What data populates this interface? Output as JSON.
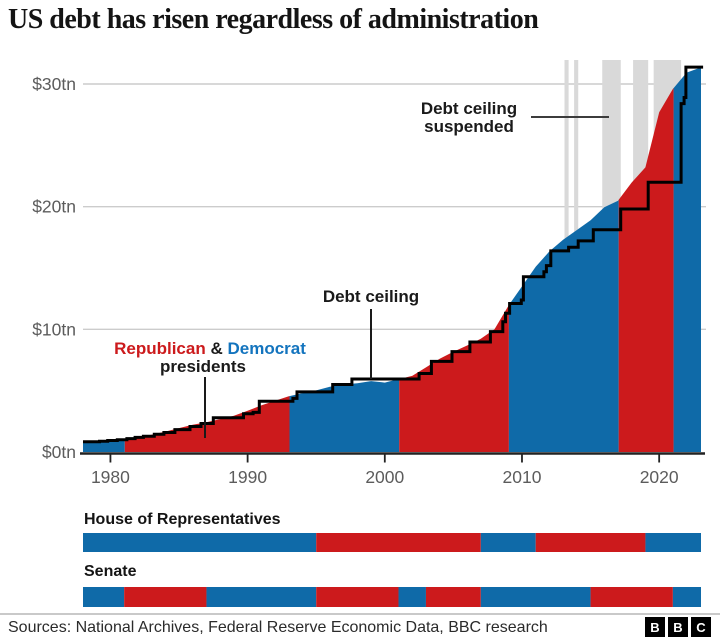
{
  "title": "US debt has risen regardless of administration",
  "annotations": {
    "suspended": {
      "line1": "Debt ceiling",
      "line2": "suspended"
    },
    "ceiling": {
      "label": "Debt ceiling"
    },
    "presidents": {
      "republican": "Republican",
      "amp": "&",
      "democrat": "Democrat",
      "line2": "presidents"
    }
  },
  "strips": {
    "house": {
      "label": "House of Representatives"
    },
    "senate": {
      "label": "Senate"
    }
  },
  "source": {
    "label": "Sources: National Archives, Federal Reserve Economic Data, BBC research",
    "logo": [
      "B",
      "B",
      "C"
    ]
  },
  "chart_data": {
    "type": "area",
    "title": "US debt has risen regardless of administration",
    "unit": "trillions of US dollars",
    "x_domain": [
      1978,
      2023.05
    ],
    "y_domain": [
      0,
      31.5
    ],
    "grid": true,
    "y_ticks": [
      {
        "value": 0,
        "label": "$0tn"
      },
      {
        "value": 10,
        "label": "$10tn"
      },
      {
        "value": 20,
        "label": "$20tn"
      },
      {
        "value": 30,
        "label": "$30tn"
      }
    ],
    "x_ticks": [
      {
        "value": 1980,
        "label": "1980"
      },
      {
        "value": 1990,
        "label": "1990"
      },
      {
        "value": 2000,
        "label": "2000"
      },
      {
        "value": 2010,
        "label": "2010"
      },
      {
        "value": 2020,
        "label": "2020"
      }
    ],
    "colors": {
      "republican": "#CC1A1C",
      "democrat": "#0F6AA8",
      "ceiling_line": "#000000",
      "suspension_band": "#D9D9D9",
      "gridline": "#CCCCCC",
      "axis": "#222222",
      "tick_text": "#5C5C5C"
    },
    "president_segments": [
      {
        "party": "democrat",
        "start": 1978,
        "end": 1981.05
      },
      {
        "party": "republican",
        "start": 1981.05,
        "end": 1993.05
      },
      {
        "party": "democrat",
        "start": 1993.05,
        "end": 2001.05
      },
      {
        "party": "republican",
        "start": 2001.05,
        "end": 2009.05
      },
      {
        "party": "democrat",
        "start": 2009.05,
        "end": 2017.05
      },
      {
        "party": "republican",
        "start": 2017.05,
        "end": 2021.05
      },
      {
        "party": "democrat",
        "start": 2021.05,
        "end": 2023.05
      }
    ],
    "debt_series_tn": [
      [
        1978,
        0.79
      ],
      [
        1979,
        0.85
      ],
      [
        1980,
        0.93
      ],
      [
        1981,
        1.03
      ],
      [
        1982,
        1.2
      ],
      [
        1983,
        1.41
      ],
      [
        1984,
        1.66
      ],
      [
        1985,
        1.95
      ],
      [
        1986,
        2.22
      ],
      [
        1987,
        2.43
      ],
      [
        1988,
        2.68
      ],
      [
        1989,
        2.95
      ],
      [
        1990,
        3.36
      ],
      [
        1991,
        3.8
      ],
      [
        1992,
        4.18
      ],
      [
        1993,
        4.54
      ],
      [
        1994,
        4.8
      ],
      [
        1995,
        5.02
      ],
      [
        1996,
        5.32
      ],
      [
        1997,
        5.5
      ],
      [
        1998,
        5.61
      ],
      [
        1999,
        5.78
      ],
      [
        2000,
        5.66
      ],
      [
        2001,
        5.94
      ],
      [
        2002,
        6.2
      ],
      [
        2003,
        6.9
      ],
      [
        2004,
        7.6
      ],
      [
        2005,
        8.17
      ],
      [
        2006,
        8.68
      ],
      [
        2007,
        9.23
      ],
      [
        2008,
        10.0
      ],
      [
        2009,
        11.9
      ],
      [
        2010,
        13.5
      ],
      [
        2011,
        15.1
      ],
      [
        2012,
        16.35
      ],
      [
        2013,
        17.3
      ],
      [
        2014,
        18.1
      ],
      [
        2015,
        18.9
      ],
      [
        2016,
        19.95
      ],
      [
        2017,
        20.49
      ],
      [
        2018,
        21.97
      ],
      [
        2019,
        23.2
      ],
      [
        2020,
        27.7
      ],
      [
        2021,
        29.6
      ],
      [
        2022,
        30.93
      ],
      [
        2023.05,
        31.35
      ]
    ],
    "debt_ceiling_steps_tn": [
      [
        1978,
        0.83
      ],
      [
        1979.2,
        0.88
      ],
      [
        1979.8,
        0.94
      ],
      [
        1980.5,
        1.0
      ],
      [
        1981.2,
        1.09
      ],
      [
        1981.8,
        1.19
      ],
      [
        1982.4,
        1.29
      ],
      [
        1983.2,
        1.45
      ],
      [
        1983.9,
        1.59
      ],
      [
        1984.7,
        1.824
      ],
      [
        1985.8,
        2.079
      ],
      [
        1986.6,
        2.32
      ],
      [
        1987.5,
        2.8
      ],
      [
        1989.7,
        3.12
      ],
      [
        1990.4,
        3.23
      ],
      [
        1990.85,
        4.145
      ],
      [
        1993.3,
        4.37
      ],
      [
        1993.6,
        4.9
      ],
      [
        1996.2,
        5.5
      ],
      [
        1997.6,
        5.95
      ],
      [
        2002.5,
        6.4
      ],
      [
        2003.4,
        7.384
      ],
      [
        2004.9,
        8.184
      ],
      [
        2006.2,
        8.965
      ],
      [
        2007.7,
        9.815
      ],
      [
        2008.6,
        10.615
      ],
      [
        2008.8,
        11.315
      ],
      [
        2009.1,
        12.104
      ],
      [
        2009.95,
        12.394
      ],
      [
        2010.1,
        14.294
      ],
      [
        2011.6,
        14.694
      ],
      [
        2011.78,
        15.194
      ],
      [
        2012.1,
        16.394
      ],
      [
        2013.4,
        16.699
      ],
      [
        2014.1,
        17.212
      ],
      [
        2015.2,
        18.113
      ],
      [
        2017.2,
        19.809
      ],
      [
        2019.2,
        21.988
      ],
      [
        2021.6,
        28.401
      ],
      [
        2021.82,
        28.901
      ],
      [
        2021.95,
        31.381
      ],
      [
        2023.2,
        31.381
      ]
    ],
    "ceiling_suspensions": [
      {
        "start": 2013.1,
        "end": 2013.4
      },
      {
        "start": 2013.8,
        "end": 2014.1
      },
      {
        "start": 2015.85,
        "end": 2017.2
      },
      {
        "start": 2018.1,
        "end": 2019.2
      },
      {
        "start": 2019.6,
        "end": 2021.6
      }
    ],
    "congress_control": {
      "house": [
        {
          "party": "democrat",
          "start": 1978,
          "end": 1995
        },
        {
          "party": "republican",
          "start": 1995,
          "end": 2007
        },
        {
          "party": "democrat",
          "start": 2007,
          "end": 2011
        },
        {
          "party": "republican",
          "start": 2011,
          "end": 2019
        },
        {
          "party": "democrat",
          "start": 2019,
          "end": 2023.05
        }
      ],
      "senate": [
        {
          "party": "democrat",
          "start": 1978,
          "end": 1981
        },
        {
          "party": "republican",
          "start": 1981,
          "end": 1987
        },
        {
          "party": "democrat",
          "start": 1987,
          "end": 1995
        },
        {
          "party": "republican",
          "start": 1995,
          "end": 2001
        },
        {
          "party": "democrat",
          "start": 2001,
          "end": 2003
        },
        {
          "party": "republican",
          "start": 2003,
          "end": 2007
        },
        {
          "party": "democrat",
          "start": 2007,
          "end": 2015
        },
        {
          "party": "republican",
          "start": 2015,
          "end": 2021
        },
        {
          "party": "democrat",
          "start": 2021,
          "end": 2023.05
        }
      ]
    }
  }
}
